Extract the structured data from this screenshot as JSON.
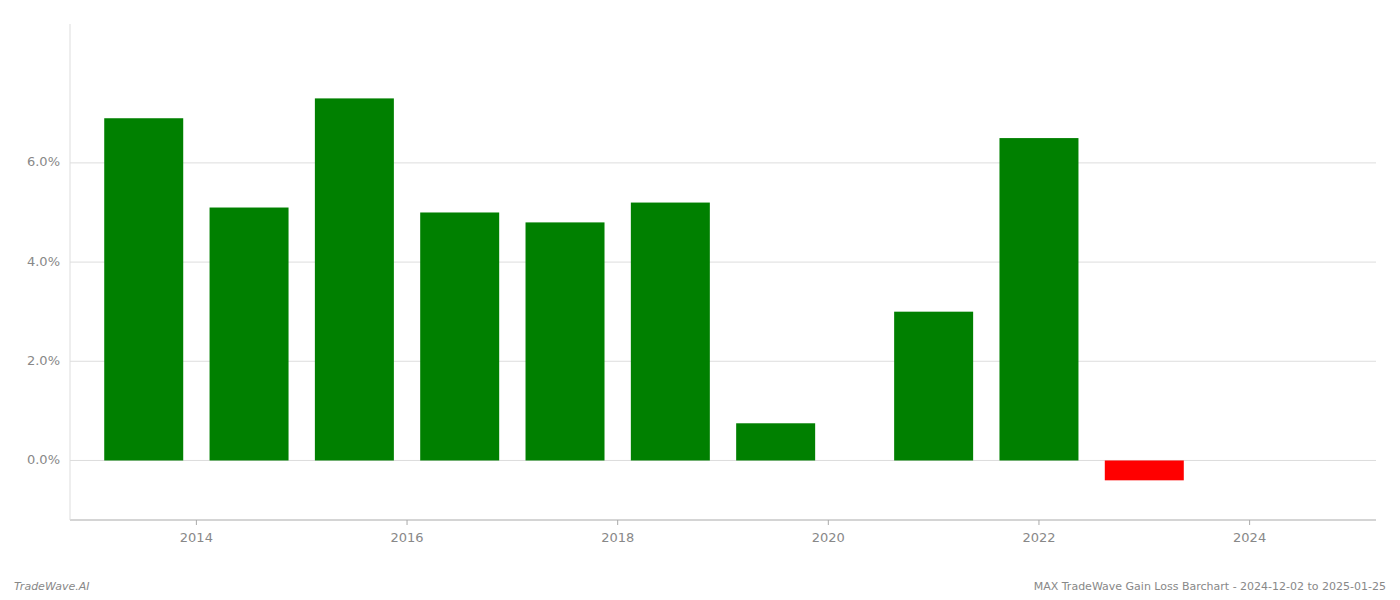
{
  "chart_data": {
    "type": "bar",
    "x": [
      2013.5,
      2014.5,
      2015.5,
      2016.5,
      2017.5,
      2018.5,
      2019.5,
      2021.0,
      2022.0,
      2023.0
    ],
    "values": [
      0.069,
      0.051,
      0.073,
      0.05,
      0.048,
      0.052,
      0.0075,
      0.03,
      0.065,
      -0.004
    ],
    "colors": [
      "#008000",
      "#008000",
      "#008000",
      "#008000",
      "#008000",
      "#008000",
      "#008000",
      "#008000",
      "#008000",
      "#ff0000"
    ],
    "xlim": [
      2012.8,
      2025.2
    ],
    "xticks": [
      2014,
      2016,
      2018,
      2020,
      2022,
      2024
    ],
    "ylim": [
      -0.012,
      0.088
    ],
    "yticks": [
      {
        "value": 0.0,
        "label": "0.0%"
      },
      {
        "value": 0.02,
        "label": "2.0%"
      },
      {
        "value": 0.04,
        "label": "4.0%"
      },
      {
        "value": 0.06,
        "label": "6.0%"
      }
    ],
    "grid": true,
    "annotations": [
      "TradeWave.AI",
      "MAX TradeWave Gain Loss Barchart - 2024-12-02 to 2025-01-25"
    ]
  }
}
